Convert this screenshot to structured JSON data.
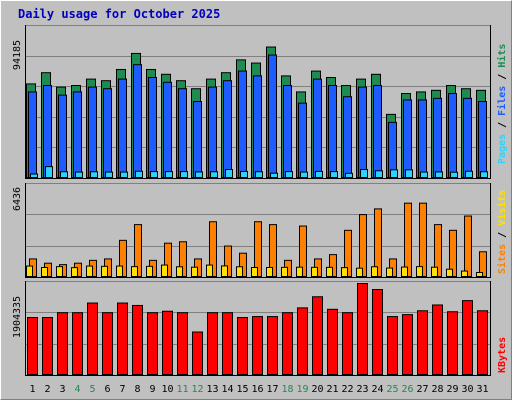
{
  "title": "Daily usage for October 2025",
  "colors": {
    "hits": "#1e8c50",
    "files": "#1e5cff",
    "pages": "#2ad4ff",
    "visits": "#ffe000",
    "sites": "#ff8000",
    "kbytes": "#ff0000",
    "weekend_day_label": "#1e8c50",
    "weekday_label": "#000000",
    "title": "#0000c0"
  },
  "chart_data": [
    {
      "type": "bar",
      "panel": "hits-files-pages",
      "y_label": "94185",
      "ylim": [
        0,
        94185
      ],
      "legend": [
        {
          "name": "Pages",
          "color": "#2ad4ff"
        },
        {
          "name": "Files",
          "color": "#1e5cff"
        },
        {
          "name": "Hits",
          "color": "#1e8c50"
        }
      ],
      "categories": [
        "1",
        "2",
        "3",
        "4",
        "5",
        "6",
        "7",
        "8",
        "9",
        "10",
        "11",
        "12",
        "13",
        "14",
        "15",
        "16",
        "17",
        "18",
        "19",
        "20",
        "21",
        "22",
        "23",
        "24",
        "25",
        "26",
        "27",
        "28",
        "29",
        "30",
        "31"
      ],
      "weekend_days": [
        "4",
        "5",
        "11",
        "12",
        "18",
        "19",
        "25",
        "26"
      ],
      "series": [
        {
          "name": "Hits",
          "values": [
            59000,
            66000,
            57000,
            58000,
            62000,
            61000,
            68000,
            78000,
            68000,
            65000,
            61000,
            56000,
            62000,
            66000,
            74000,
            72000,
            82000,
            64000,
            54000,
            67000,
            63000,
            58000,
            62000,
            65000,
            40000,
            53000,
            54000,
            55000,
            58000,
            56000,
            55000
          ]
        },
        {
          "name": "Files",
          "values": [
            54000,
            58000,
            52000,
            54000,
            57000,
            56000,
            62000,
            71000,
            63000,
            60000,
            56000,
            48000,
            57000,
            61000,
            67000,
            64000,
            77000,
            58000,
            47000,
            62000,
            58000,
            51000,
            57000,
            58000,
            35000,
            49000,
            49000,
            50000,
            53000,
            50000,
            48000
          ]
        },
        {
          "name": "Pages",
          "values": [
            2800,
            7400,
            4200,
            4000,
            4200,
            4000,
            4000,
            4500,
            4300,
            4300,
            4300,
            4100,
            4200,
            5600,
            4400,
            4200,
            3300,
            4300,
            4000,
            4400,
            4300,
            3200,
            5600,
            4800,
            5400,
            5400,
            4000,
            4100,
            3900,
            4500,
            4200
          ]
        }
      ]
    },
    {
      "type": "bar",
      "panel": "visits-sites",
      "y_label": "6436",
      "ylim": [
        0,
        6436
      ],
      "legend": [
        {
          "name": "Sites",
          "color": "#ff8000"
        },
        {
          "name": "Visits",
          "color": "#ffe000"
        }
      ],
      "series": [
        {
          "name": "Visits",
          "values": [
            800,
            700,
            760,
            690,
            800,
            780,
            800,
            760,
            780,
            870,
            750,
            720,
            870,
            810,
            750,
            700,
            700,
            710,
            720,
            710,
            710,
            690,
            650,
            750,
            660,
            730,
            760,
            720,
            580,
            450,
            350
          ]
        },
        {
          "name": "Sites",
          "values": [
            1300,
            1000,
            900,
            1000,
            1200,
            1300,
            2600,
            3700,
            1200,
            2400,
            2500,
            1300,
            3900,
            2200,
            1700,
            3900,
            3700,
            1200,
            3600,
            1300,
            1600,
            3300,
            4400,
            4800,
            1300,
            5200,
            5200,
            3700,
            3300,
            4300,
            1800
          ]
        }
      ]
    },
    {
      "type": "bar",
      "panel": "kbytes",
      "y_label": "1904335",
      "ylim": [
        0,
        1904335
      ],
      "legend": [
        {
          "name": "KBytes",
          "color": "#ff0000"
        }
      ],
      "series": [
        {
          "name": "KBytes",
          "values": [
            1200000,
            1200000,
            1300000,
            1300000,
            1500000,
            1300000,
            1500000,
            1450000,
            1300000,
            1330000,
            1300000,
            900000,
            1300000,
            1300000,
            1200000,
            1220000,
            1220000,
            1300000,
            1400000,
            1630000,
            1370000,
            1300000,
            1904335,
            1780000,
            1220000,
            1260000,
            1340000,
            1460000,
            1320000,
            1550000,
            1340000
          ]
        }
      ]
    }
  ]
}
